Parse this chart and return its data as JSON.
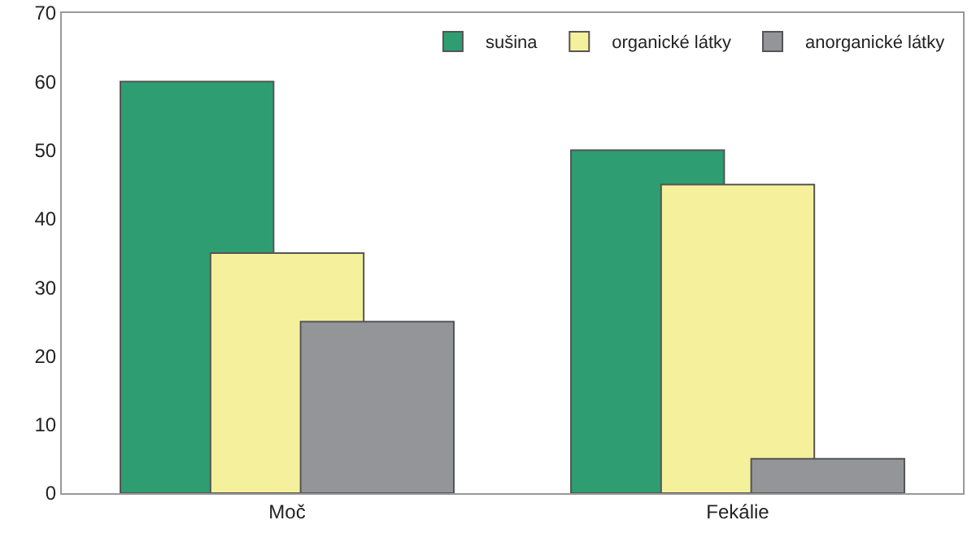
{
  "chart_data": {
    "type": "bar",
    "categories": [
      "Moč",
      "Fekálie"
    ],
    "series": [
      {
        "name": "sušina",
        "color": "#2e9e72",
        "values": [
          60,
          50
        ]
      },
      {
        "name": "organické látky",
        "color": "#f5f09c",
        "values": [
          35,
          45
        ]
      },
      {
        "name": "anorganické látky",
        "color": "#939598",
        "values": [
          25,
          5
        ]
      }
    ],
    "ylim": [
      0,
      70
    ],
    "yticks": [
      0,
      10,
      20,
      30,
      40,
      50,
      60,
      70
    ],
    "grid": false,
    "legend": "top right"
  }
}
